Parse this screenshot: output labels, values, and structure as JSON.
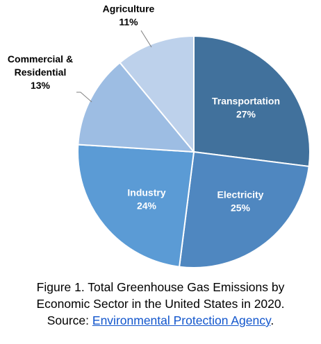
{
  "chart_data": {
    "type": "pie",
    "title": "",
    "slices": [
      {
        "label": "Transportation",
        "value": 27,
        "pct_label": "27%",
        "color": "#41719c",
        "label_color": "#ffffff"
      },
      {
        "label": "Electricity",
        "value": 25,
        "pct_label": "25%",
        "color": "#4f87c0",
        "label_color": "#ffffff"
      },
      {
        "label": "Industry",
        "value": 24,
        "pct_label": "24%",
        "color": "#5b9bd5",
        "label_color": "#ffffff"
      },
      {
        "label": "Commercial &\nResidential",
        "value": 13,
        "pct_label": "13%",
        "color": "#9dbde3",
        "label_color": "#000000"
      },
      {
        "label": "Agriculture",
        "value": 11,
        "pct_label": "11%",
        "color": "#bdd1eb",
        "label_color": "#000000"
      }
    ]
  },
  "caption": {
    "line1": "Figure 1. Total Greenhouse Gas Emissions by",
    "line2": "Economic Sector in the United States in 2020.",
    "source_prefix": "Source: ",
    "source_link": "Environmental Protection Agency",
    "source_suffix": "."
  }
}
